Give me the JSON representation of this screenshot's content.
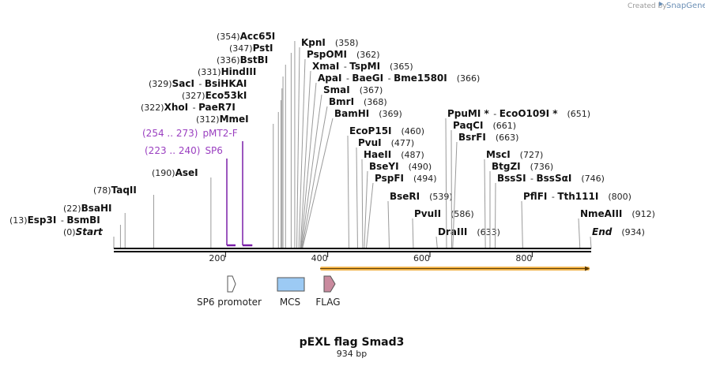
{
  "header": {
    "credit": "Created by",
    "brand": "SnapGene"
  },
  "plasmid": {
    "name": "pEXL flag Smad3",
    "length_label": "934 bp",
    "length": 934
  },
  "sites": [
    {
      "pos": 13,
      "label": "(13)",
      "names": [
        "Esp3I",
        "BsmBI"
      ]
    },
    {
      "pos": 22,
      "label": "(22)",
      "names": [
        "BsaHI"
      ]
    },
    {
      "pos": 0,
      "label": "(0)",
      "names": [
        "Start"
      ],
      "italic": true
    },
    {
      "pos": 78,
      "label": "(78)",
      "names": [
        "TaqII"
      ]
    },
    {
      "pos": 190,
      "label": "(190)",
      "names": [
        "AseI"
      ]
    },
    {
      "pos": 312,
      "label": "(312)",
      "names": [
        "MmeI"
      ]
    },
    {
      "pos": 322,
      "label": "(322)",
      "names": [
        "XhoI",
        "PaeR7I"
      ]
    },
    {
      "pos": 327,
      "label": "(327)",
      "names": [
        "Eco53kI"
      ]
    },
    {
      "pos": 329,
      "label": "(329)",
      "names": [
        "SacI",
        "BsiHKAI"
      ]
    },
    {
      "pos": 331,
      "label": "(331)",
      "names": [
        "HindIII"
      ]
    },
    {
      "pos": 336,
      "label": "(336)",
      "names": [
        "BstBI"
      ]
    },
    {
      "pos": 347,
      "label": "(347)",
      "names": [
        "PstI"
      ]
    },
    {
      "pos": 354,
      "label": "(354)",
      "names": [
        "Acc65I"
      ]
    },
    {
      "pos": 358,
      "label": "(358)",
      "names": [
        "KpnI"
      ]
    },
    {
      "pos": 362,
      "label": "(362)",
      "names": [
        "PspOMI"
      ]
    },
    {
      "pos": 365,
      "label": "(365)",
      "names": [
        "XmaI",
        "TspMI"
      ]
    },
    {
      "pos": 366,
      "label": "(366)",
      "names": [
        "ApaI",
        "BaeGI",
        "Bme1580I"
      ]
    },
    {
      "pos": 367,
      "label": "(367)",
      "names": [
        "SmaI"
      ]
    },
    {
      "pos": 368,
      "label": "(368)",
      "names": [
        "BmrI"
      ]
    },
    {
      "pos": 369,
      "label": "(369)",
      "names": [
        "BamHI"
      ]
    },
    {
      "pos": 460,
      "label": "(460)",
      "names": [
        "EcoP15I"
      ]
    },
    {
      "pos": 477,
      "label": "(477)",
      "names": [
        "PvuI"
      ]
    },
    {
      "pos": 487,
      "label": "(487)",
      "names": [
        "HaeII"
      ]
    },
    {
      "pos": 490,
      "label": "(490)",
      "names": [
        "BseYI"
      ]
    },
    {
      "pos": 494,
      "label": "(494)",
      "names": [
        "PspFI"
      ]
    },
    {
      "pos": 539,
      "label": "(539)",
      "names": [
        "BseRI"
      ]
    },
    {
      "pos": 586,
      "label": "(586)",
      "names": [
        "PvuII"
      ]
    },
    {
      "pos": 633,
      "label": "(633)",
      "names": [
        "DraIII"
      ]
    },
    {
      "pos": 651,
      "label": "(651)",
      "names": [
        "PpuMI *",
        "EcoO109I *"
      ]
    },
    {
      "pos": 661,
      "label": "(661)",
      "names": [
        "PaqCI"
      ]
    },
    {
      "pos": 663,
      "label": "(663)",
      "names": [
        "BsrFI"
      ]
    },
    {
      "pos": 727,
      "label": "(727)",
      "names": [
        "MscI"
      ]
    },
    {
      "pos": 736,
      "label": "(736)",
      "names": [
        "BtgZI"
      ]
    },
    {
      "pos": 746,
      "label": "(746)",
      "names": [
        "BssSI",
        "BssSαI"
      ]
    },
    {
      "pos": 800,
      "label": "(800)",
      "names": [
        "PflFI",
        "Tth111I"
      ]
    },
    {
      "pos": 912,
      "label": "(912)",
      "names": [
        "NmeAIII"
      ]
    },
    {
      "pos": 934,
      "label": "(934)",
      "names": [
        "End"
      ],
      "italic": true
    }
  ],
  "primers": [
    {
      "range": "(254 .. 273)",
      "name": "pMT2-F",
      "start": 254,
      "end": 273
    },
    {
      "range": "(223 .. 240)",
      "name": "SP6",
      "start": 223,
      "end": 240
    }
  ],
  "ticks": [
    200,
    400,
    600,
    800
  ],
  "feature_bar": {
    "start": 410,
    "end": 934,
    "color": "#f0a830"
  },
  "legend": [
    {
      "name": "SP6 promoter",
      "shape": "arrow",
      "color": "#ffffff"
    },
    {
      "name": "MCS",
      "shape": "box",
      "color": "#9ccaf4"
    },
    {
      "name": "FLAG",
      "shape": "arrow",
      "color": "#c98a9e"
    }
  ]
}
